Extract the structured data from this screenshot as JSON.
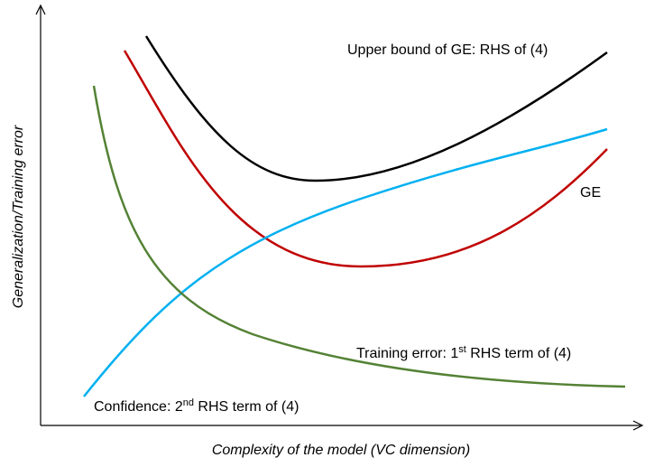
{
  "axes": {
    "y_label": "Generalization/Training error",
    "x_label": "Complexity of the model (VC dimension)"
  },
  "curves": [
    {
      "label": "Upper bound of GE: RHS of (4)"
    },
    {
      "label": "GE"
    },
    {
      "label": {
        "before": "Training error: 1",
        "sup": "st",
        "after": " RHS term of (4)"
      }
    },
    {
      "label": {
        "before": "Confidence: 2",
        "sup": "nd",
        "after": " RHS term of (4)"
      }
    }
  ]
}
